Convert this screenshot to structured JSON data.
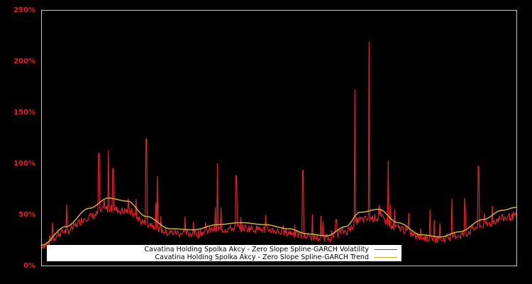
{
  "chart_data": {
    "type": "line",
    "title": "",
    "xlabel": "",
    "ylabel": "",
    "ylim": [
      0,
      250
    ],
    "yticks": [
      "0%",
      "50%",
      "100%",
      "150%",
      "200%",
      "250%"
    ],
    "ytick_values": [
      0,
      50,
      100,
      150,
      200,
      250
    ],
    "grid": false,
    "legend_position": "lower center (inside plot)",
    "colors": {
      "background": "#000000",
      "frame": "#c8c8c8",
      "volatility": "#e0202a",
      "trend": "#d4b030",
      "tick_label": "#e0202a"
    },
    "series": [
      {
        "name": "Cavatina Holding Spolka Akcy - Zero Slope Spline-GARCH Volatility",
        "color": "#e0202a",
        "x": [
          0,
          0.03,
          0.06,
          0.09,
          0.12,
          0.14,
          0.15,
          0.16,
          0.18,
          0.2,
          0.22,
          0.24,
          0.25,
          0.27,
          0.3,
          0.33,
          0.37,
          0.41,
          0.42,
          0.44,
          0.46,
          0.5,
          0.52,
          0.55,
          0.6,
          0.62,
          0.66,
          0.69,
          0.7,
          0.72,
          0.73,
          0.76,
          0.8,
          0.83,
          0.85,
          0.9,
          0.92,
          0.95,
          1.0
        ],
        "values": [
          18,
          30,
          42,
          60,
          110,
          113,
          95,
          65,
          52,
          48,
          124,
          40,
          35,
          40,
          34,
          38,
          100,
          88,
          40,
          38,
          36,
          32,
          30,
          93,
          36,
          45,
          172,
          219,
          45,
          42,
          103,
          35,
          28,
          26,
          30,
          38,
          97,
          50,
          48
        ]
      },
      {
        "name": "Cavatina Holding Spolka Akcy - Zero Slope Spline-GARCH Trend",
        "color": "#d4b030",
        "x": [
          0,
          0.05,
          0.1,
          0.14,
          0.18,
          0.22,
          0.27,
          0.32,
          0.37,
          0.42,
          0.47,
          0.52,
          0.56,
          0.6,
          0.64,
          0.67,
          0.71,
          0.75,
          0.8,
          0.84,
          0.88,
          0.93,
          0.97,
          1.0
        ],
        "values": [
          20,
          38,
          56,
          66,
          63,
          48,
          36,
          35,
          40,
          42,
          40,
          36,
          31,
          29,
          38,
          52,
          55,
          42,
          30,
          28,
          33,
          45,
          54,
          57
        ]
      }
    ],
    "annotations": {
      "volatility_peak": {
        "value": 219,
        "position": "approx 72% along x-axis"
      },
      "volatility_second_peak": {
        "value": 172
      }
    }
  },
  "legend": {
    "items": [
      {
        "label": "Cavatina Holding Spolka Akcy - Zero Slope Spline-GARCH Volatility",
        "color": "#e0202a"
      },
      {
        "label": "Cavatina Holding Spolka Akcy - Zero Slope Spline-GARCH Trend",
        "color": "#d4b030"
      }
    ]
  },
  "axis": {
    "y_labels": [
      "250%",
      "200%",
      "150%",
      "100%",
      "50%",
      "0%"
    ]
  }
}
